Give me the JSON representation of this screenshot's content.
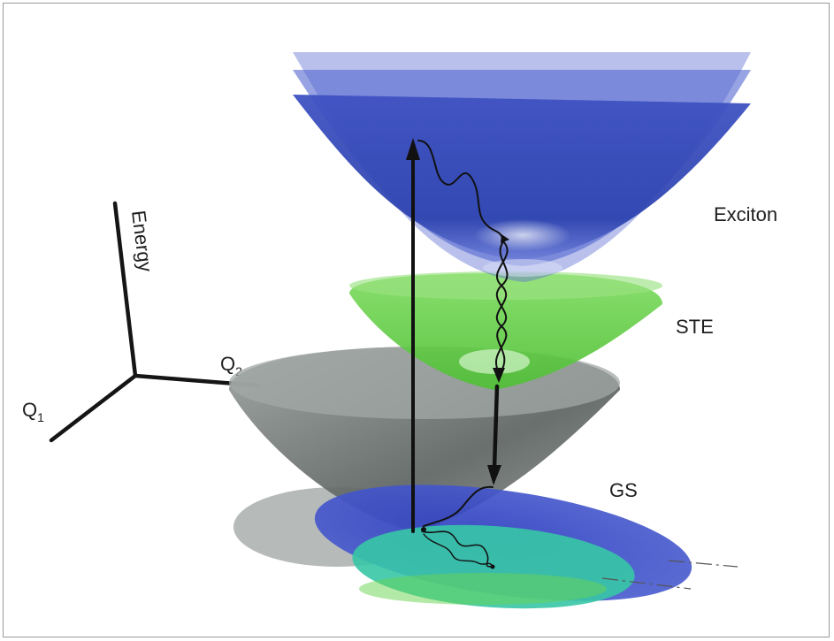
{
  "labels": {
    "energy": "Energy",
    "q1": "Q",
    "q1_sub": "1",
    "q2": "Q",
    "q2_sub": "2",
    "exciton": "Exciton",
    "ste": "STE",
    "gs": "GS"
  },
  "colors": {
    "exciton": "#3a4fc0",
    "ste": "#5fd040",
    "gs": "#6a706e",
    "arrows": "#111111",
    "axes": "#151515"
  }
}
